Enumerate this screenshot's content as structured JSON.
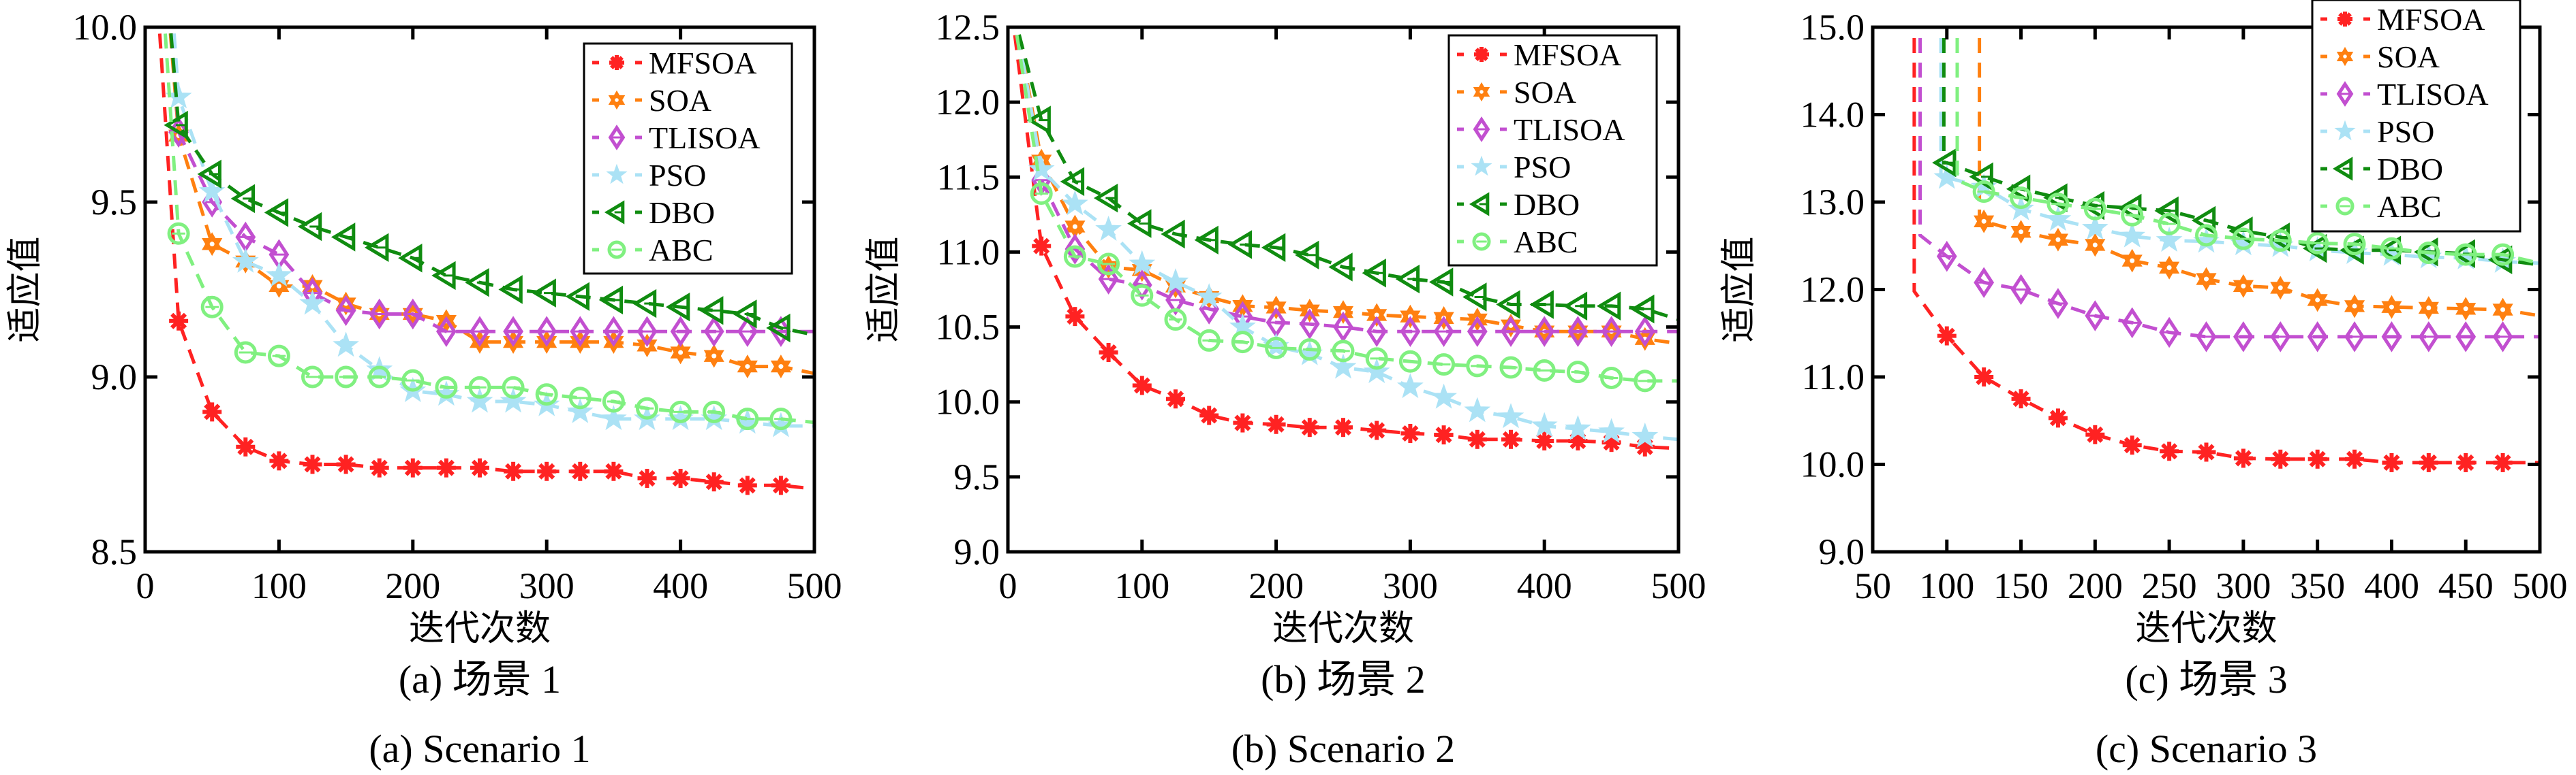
{
  "figure": {
    "series_style": [
      {
        "name": "MFSOA",
        "color": "#FF2222",
        "marker": "asterisk"
      },
      {
        "name": "SOA",
        "color": "#FF8010",
        "marker": "hexagram"
      },
      {
        "name": "TLISOA",
        "color": "#C24FD0",
        "marker": "diamond"
      },
      {
        "name": "PSO",
        "color": "#ABE2F5",
        "marker": "star"
      },
      {
        "name": "DBO",
        "color": "#108C10",
        "marker": "triangle-left"
      },
      {
        "name": "ABC",
        "color": "#80F080",
        "marker": "circle"
      }
    ]
  },
  "chart_data": [
    {
      "type": "line",
      "title": "",
      "caption_cn": "(a) 场景 1",
      "caption_en": "(a) Scenario 1",
      "xlabel": "迭代次数",
      "ylabel": "适应值",
      "xlim": [
        0,
        500
      ],
      "ylim": [
        8.5,
        10.0
      ],
      "xticks": [
        0,
        100,
        200,
        300,
        400,
        500
      ],
      "xtick_labels": [
        "0",
        "100",
        "200",
        "300",
        "400",
        "500"
      ],
      "yticks": [
        8.5,
        9.0,
        9.5,
        10.0
      ],
      "ytick_labels": [
        "8.5",
        "9.0",
        "9.5",
        "10.0"
      ],
      "grid": false,
      "legend_position": "top-right",
      "x": [
        25,
        50,
        75,
        100,
        125,
        150,
        175,
        200,
        225,
        250,
        275,
        300,
        325,
        350,
        375,
        400,
        425,
        450,
        475,
        500
      ],
      "series": [
        {
          "name": "MFSOA",
          "start": [
            2,
            10.5
          ],
          "values": [
            9.16,
            8.9,
            8.8,
            8.76,
            8.75,
            8.75,
            8.74,
            8.74,
            8.74,
            8.74,
            8.73,
            8.73,
            8.73,
            8.73,
            8.71,
            8.71,
            8.7,
            8.69,
            8.69,
            8.68
          ]
        },
        {
          "name": "SOA",
          "start": [
            8,
            10.5
          ],
          "values": [
            9.69,
            9.38,
            9.33,
            9.26,
            9.26,
            9.21,
            9.18,
            9.18,
            9.16,
            9.1,
            9.1,
            9.1,
            9.1,
            9.1,
            9.09,
            9.07,
            9.06,
            9.03,
            9.03,
            9.01
          ]
        },
        {
          "name": "TLISOA",
          "start": [
            10,
            10.5
          ],
          "values": [
            9.7,
            9.5,
            9.4,
            9.35,
            9.24,
            9.19,
            9.18,
            9.18,
            9.13,
            9.13,
            9.13,
            9.13,
            9.13,
            9.13,
            9.13,
            9.13,
            9.13,
            9.13,
            9.13,
            9.13
          ]
        },
        {
          "name": "PSO",
          "start": [
            12,
            10.5
          ],
          "values": [
            9.8,
            9.53,
            9.33,
            9.29,
            9.21,
            9.09,
            9.02,
            8.96,
            8.95,
            8.93,
            8.93,
            8.92,
            8.9,
            8.88,
            8.88,
            8.88,
            8.88,
            8.87,
            8.86,
            8.86
          ]
        },
        {
          "name": "DBO",
          "start": [
            8,
            10.5
          ],
          "values": [
            9.72,
            9.58,
            9.51,
            9.47,
            9.43,
            9.4,
            9.37,
            9.34,
            9.29,
            9.27,
            9.25,
            9.24,
            9.23,
            9.22,
            9.21,
            9.2,
            9.19,
            9.18,
            9.14,
            9.12
          ]
        },
        {
          "name": "ABC",
          "start": [
            6,
            10.5
          ],
          "values": [
            9.41,
            9.2,
            9.07,
            9.06,
            9.0,
            9.0,
            9.0,
            8.99,
            8.97,
            8.97,
            8.97,
            8.95,
            8.94,
            8.93,
            8.91,
            8.9,
            8.9,
            8.88,
            8.88,
            8.87
          ]
        }
      ]
    },
    {
      "type": "line",
      "title": "",
      "caption_cn": "(b) 场景 2",
      "caption_en": "(b) Scenario 2",
      "xlabel": "迭代次数",
      "ylabel": "适应值",
      "xlim": [
        0,
        500
      ],
      "ylim": [
        9.0,
        12.5
      ],
      "xticks": [
        0,
        100,
        200,
        300,
        400,
        500
      ],
      "xtick_labels": [
        "0",
        "100",
        "200",
        "300",
        "400",
        "500"
      ],
      "yticks": [
        9.0,
        9.5,
        10.0,
        10.5,
        11.0,
        11.5,
        12.0,
        12.5
      ],
      "ytick_labels": [
        "9.0",
        "9.5",
        "10.0",
        "10.5",
        "11.0",
        "11.5",
        "12.0",
        "12.5"
      ],
      "grid": false,
      "legend_position": "top-right",
      "x": [
        25,
        50,
        75,
        100,
        125,
        150,
        175,
        200,
        225,
        250,
        275,
        300,
        325,
        350,
        375,
        400,
        425,
        450,
        475,
        500
      ],
      "series": [
        {
          "name": "MFSOA",
          "start": [
            3,
            12.6
          ],
          "values": [
            11.04,
            10.57,
            10.33,
            10.11,
            10.02,
            9.91,
            9.86,
            9.85,
            9.83,
            9.83,
            9.81,
            9.79,
            9.78,
            9.75,
            9.75,
            9.74,
            9.74,
            9.73,
            9.7,
            9.69
          ]
        },
        {
          "name": "SOA",
          "start": [
            5,
            12.6
          ],
          "values": [
            11.61,
            11.17,
            10.9,
            10.88,
            10.77,
            10.7,
            10.64,
            10.63,
            10.61,
            10.6,
            10.58,
            10.57,
            10.56,
            10.55,
            10.51,
            10.47,
            10.47,
            10.47,
            10.42,
            10.39
          ]
        },
        {
          "name": "TLISOA",
          "start": [
            5,
            12.6
          ],
          "values": [
            11.48,
            11.02,
            10.82,
            10.78,
            10.68,
            10.62,
            10.57,
            10.53,
            10.52,
            10.5,
            10.47,
            10.47,
            10.47,
            10.47,
            10.47,
            10.47,
            10.47,
            10.47,
            10.47,
            10.47
          ]
        },
        {
          "name": "PSO",
          "start": [
            5,
            12.6
          ],
          "values": [
            11.55,
            11.32,
            11.15,
            10.92,
            10.8,
            10.7,
            10.5,
            10.37,
            10.32,
            10.23,
            10.2,
            10.1,
            10.03,
            9.94,
            9.9,
            9.84,
            9.82,
            9.8,
            9.77,
            9.75
          ]
        },
        {
          "name": "DBO",
          "start": [
            4,
            12.6
          ],
          "values": [
            11.88,
            11.47,
            11.36,
            11.19,
            11.12,
            11.08,
            11.05,
            11.03,
            10.98,
            10.9,
            10.86,
            10.82,
            10.8,
            10.7,
            10.65,
            10.65,
            10.64,
            10.64,
            10.62,
            10.55
          ]
        },
        {
          "name": "ABC",
          "start": [
            4,
            12.6
          ],
          "values": [
            11.39,
            10.97,
            10.92,
            10.71,
            10.55,
            10.41,
            10.4,
            10.36,
            10.35,
            10.34,
            10.29,
            10.27,
            10.25,
            10.24,
            10.23,
            10.21,
            10.2,
            10.16,
            10.14,
            10.14
          ]
        }
      ]
    },
    {
      "type": "line",
      "title": "",
      "caption_cn": "(c) 场景 3",
      "caption_en": "(c) Scenario 3",
      "xlabel": "迭代次数",
      "ylabel": "适应值",
      "xlim": [
        50,
        500
      ],
      "ylim": [
        9.0,
        15.0
      ],
      "xticks": [
        50,
        100,
        150,
        200,
        250,
        300,
        350,
        400,
        450,
        500
      ],
      "xtick_labels": [
        "50",
        "100",
        "150",
        "200",
        "250",
        "300",
        "350",
        "400",
        "450",
        "500"
      ],
      "yticks": [
        9.0,
        10.0,
        11.0,
        12.0,
        13.0,
        14.0,
        15.0
      ],
      "ytick_labels": [
        "9.0",
        "10.0",
        "11.0",
        "12.0",
        "13.0",
        "14.0",
        "15.0"
      ],
      "grid": false,
      "legend_position": "top-right",
      "x": [
        100,
        125,
        150,
        175,
        200,
        225,
        250,
        275,
        300,
        325,
        350,
        375,
        400,
        425,
        450,
        475,
        500
      ],
      "series": [
        {
          "name": "MFSOA",
          "start": [
            78,
            11.98
          ],
          "values": [
            11.47,
            11.0,
            10.75,
            10.53,
            10.34,
            10.22,
            10.15,
            10.14,
            10.07,
            10.06,
            10.06,
            10.06,
            10.02,
            10.02,
            10.02,
            10.02,
            10.02
          ]
        },
        {
          "name": "SOA",
          "start": [
            122,
            12.78
          ],
          "values": [
            null,
            12.78,
            12.66,
            12.57,
            12.51,
            12.33,
            12.25,
            12.12,
            12.04,
            12.02,
            11.88,
            11.81,
            11.8,
            11.79,
            11.78,
            11.77,
            11.7
          ]
        },
        {
          "name": "TLISOA",
          "start": [
            82,
            12.62
          ],
          "values": [
            12.38,
            12.08,
            12.0,
            11.84,
            11.7,
            11.62,
            11.51,
            11.46,
            11.46,
            11.46,
            11.46,
            11.46,
            11.46,
            11.46,
            11.46,
            11.46,
            11.46
          ]
        },
        {
          "name": "PSO",
          "start": [
            96,
            13.3
          ],
          "values": [
            13.28,
            13.17,
            12.92,
            12.8,
            12.7,
            12.61,
            12.56,
            12.55,
            12.52,
            12.5,
            12.45,
            12.42,
            12.4,
            12.37,
            12.36,
            12.32,
            12.3
          ]
        },
        {
          "name": "DBO",
          "start": [
            98,
            13.45
          ],
          "values": [
            13.45,
            13.29,
            13.15,
            13.05,
            12.96,
            12.93,
            12.9,
            12.79,
            12.67,
            12.6,
            12.47,
            12.45,
            12.45,
            12.43,
            12.41,
            12.34,
            12.28
          ]
        },
        {
          "name": "ABC",
          "start": [
            107,
            13.25
          ],
          "values": [
            null,
            13.12,
            13.05,
            12.98,
            12.92,
            12.85,
            12.75,
            12.62,
            12.58,
            12.56,
            12.53,
            12.52,
            12.47,
            12.42,
            12.4,
            12.4,
            12.3
          ]
        }
      ]
    }
  ]
}
